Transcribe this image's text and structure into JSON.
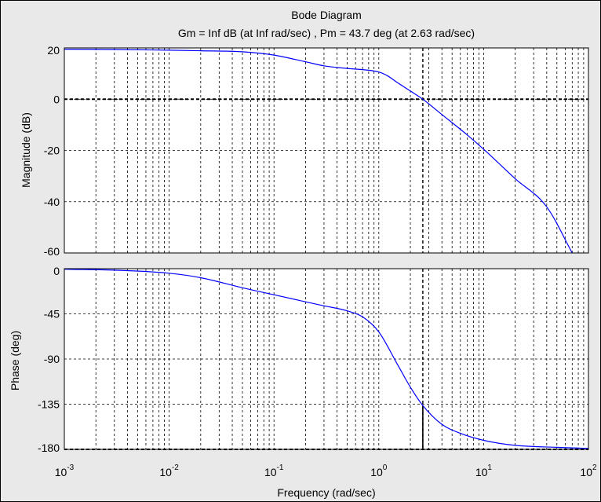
{
  "figure": {
    "title": "Bode Diagram",
    "subtitle": "Gm = Inf dB (at Inf rad/sec) ,  Pm = 43.7 deg (at 2.63 rad/sec)",
    "xlabel": "Frequency  (rad/sec)",
    "background_color": "#e9e9e9",
    "axes_color": "#ffffff",
    "curve_color": "#0000ff",
    "grid_color": "#000000"
  },
  "chart_data": [
    {
      "type": "line",
      "panel": "magnitude",
      "ylabel": "Magnitude (dB)",
      "xscale": "log",
      "xlim": [
        0.001,
        100
      ],
      "ylim": [
        -60,
        20
      ],
      "yticks": [
        20,
        0,
        -20,
        -40,
        -60
      ],
      "grid": true,
      "reference_line": {
        "y": 0,
        "style": "dashed"
      },
      "crossover_marker": {
        "x": 2.63,
        "style": "dashed vertical"
      },
      "series": [
        {
          "x": [
            0.001,
            0.003,
            0.01,
            0.02,
            0.05,
            0.1,
            0.2,
            0.3,
            0.5,
            0.8,
            1.0,
            1.2,
            1.5,
            2.0,
            2.63,
            4.0,
            7.0,
            10,
            20,
            40,
            70
          ],
          "values": [
            19.5,
            19.4,
            19.1,
            18.9,
            18.5,
            17.2,
            14.6,
            13.0,
            12.0,
            11.3,
            10.6,
            9.2,
            6.5,
            3.2,
            0,
            -6,
            -14,
            -19.5,
            -31,
            -42,
            -60
          ]
        }
      ]
    },
    {
      "type": "line",
      "panel": "phase",
      "ylabel": "Phase (deg)",
      "xscale": "log",
      "xlim": [
        0.001,
        100
      ],
      "ylim": [
        -180,
        0
      ],
      "yticks": [
        0,
        -45,
        -90,
        -135,
        -180
      ],
      "grid": true,
      "reference_line": {
        "y": -180,
        "style": "dashed"
      },
      "crossover_marker": {
        "x": 2.63,
        "phase": -136.3,
        "style": "dashed vertical with solid drop line"
      },
      "series": [
        {
          "x": [
            0.001,
            0.003,
            0.01,
            0.02,
            0.05,
            0.1,
            0.2,
            0.3,
            0.5,
            0.7,
            1.0,
            1.5,
            2.0,
            2.63,
            4.0,
            6.0,
            10,
            20,
            50,
            100
          ],
          "values": [
            -0.5,
            -1.5,
            -4.5,
            -9,
            -19,
            -26,
            -33,
            -37,
            -42,
            -48,
            -63,
            -95,
            -118,
            -136.3,
            -155,
            -164,
            -171,
            -176,
            -178,
            -179
          ]
        }
      ]
    }
  ],
  "axes": {
    "x_tick_labels": [
      {
        "base": "10",
        "exp": "-3"
      },
      {
        "base": "10",
        "exp": "-2"
      },
      {
        "base": "10",
        "exp": "-1"
      },
      {
        "base": "10",
        "exp": "0"
      },
      {
        "base": "10",
        "exp": "1"
      },
      {
        "base": "10",
        "exp": "2"
      }
    ]
  }
}
